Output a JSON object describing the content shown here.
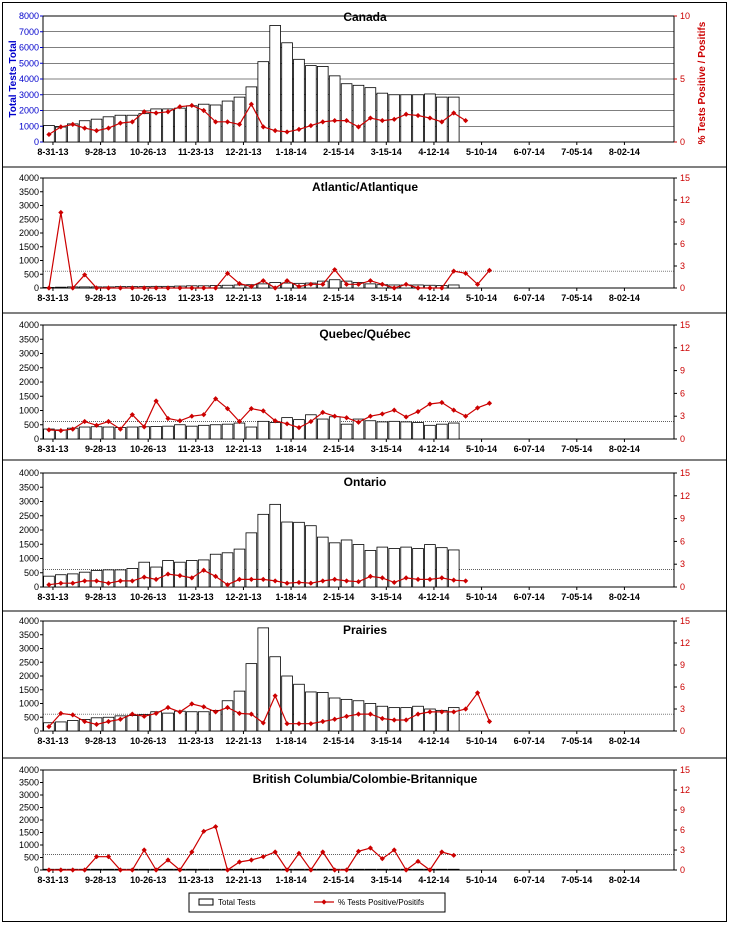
{
  "figure": {
    "legend": {
      "bars_label": "Total Tests",
      "line_label": "% Tests Positive/Positifs"
    },
    "colors": {
      "bar_fill": "#ffffff",
      "bar_stroke": "#000000",
      "line": "#cc0000",
      "first_panel_left_axis": "#0000cc",
      "first_panel_right_axis": "#cc0000",
      "grid": "#000000"
    }
  },
  "chart_data": [
    {
      "type": "bar",
      "panel": "Canada",
      "title": "Canada",
      "ylabel_left": "Total Tests Total",
      "ylabel_right": "% Tests Positive / Positifs",
      "x_tick_labels": [
        "8-31-13",
        "9-28-13",
        "10-26-13",
        "11-23-13",
        "12-21-13",
        "1-18-14",
        "2-15-14",
        "3-15-14",
        "4-12-14",
        "5-10-14",
        "6-07-14",
        "7-05-14",
        "8-02-14"
      ],
      "y_left_ticks": [
        0,
        1000,
        2000,
        3000,
        4000,
        5000,
        6000,
        7000,
        8000
      ],
      "y_right_ticks": [
        0,
        5,
        10
      ],
      "ylim_left": [
        0,
        8000
      ],
      "ylim_right": [
        0,
        10
      ],
      "n_weeks": 53,
      "series": [
        {
          "name": "Total Tests",
          "values": [
            1050,
            950,
            1150,
            1350,
            1450,
            1600,
            1700,
            1700,
            1800,
            2100,
            2100,
            2150,
            2300,
            2400,
            2350,
            2600,
            2850,
            3500,
            5100,
            7400,
            6300,
            5250,
            4850,
            4800,
            4200,
            3700,
            3600,
            3450,
            3100,
            3000,
            3000,
            3000,
            3050,
            2850,
            2850
          ]
        },
        {
          "name": "% Tests Positive/Positifs",
          "values": [
            0.6,
            1.2,
            1.4,
            1.1,
            0.9,
            1.1,
            1.5,
            1.6,
            2.4,
            2.3,
            2.4,
            2.8,
            2.9,
            2.5,
            1.6,
            1.6,
            1.4,
            3.0,
            1.2,
            0.9,
            0.8,
            1.0,
            1.3,
            1.6,
            1.7,
            1.7,
            1.2,
            1.9,
            1.7,
            1.8,
            2.2,
            2.1,
            1.9,
            1.6,
            2.3,
            1.7
          ]
        }
      ]
    },
    {
      "type": "bar",
      "panel": "Atlantic",
      "title": "Atlantic/Atlantique",
      "x_tick_labels": [
        "8-31-13",
        "9-28-13",
        "10-26-13",
        "11-23-13",
        "12-21-13",
        "1-18-14",
        "2-15-14",
        "3-15-14",
        "4-12-14",
        "5-10-14",
        "6-07-14",
        "7-05-14",
        "8-02-14"
      ],
      "y_left_ticks": [
        0,
        500,
        1000,
        1500,
        2000,
        2500,
        3000,
        3500,
        4000
      ],
      "y_right_ticks": [
        0,
        3,
        6,
        9,
        12,
        15
      ],
      "ylim_left": [
        0,
        4000
      ],
      "ylim_right": [
        0,
        15
      ],
      "n_weeks": 53,
      "series": [
        {
          "name": "Total Tests",
          "values": [
            20,
            30,
            40,
            40,
            40,
            40,
            50,
            50,
            50,
            60,
            60,
            70,
            80,
            80,
            90,
            100,
            110,
            120,
            150,
            200,
            180,
            170,
            180,
            250,
            300,
            250,
            200,
            150,
            120,
            110,
            110,
            110,
            100,
            90,
            110
          ]
        },
        {
          "name": "% Tests Positive/Positifs",
          "values": [
            0,
            10.3,
            0,
            1.8,
            0,
            0,
            0,
            0,
            0,
            0,
            0,
            0,
            0,
            0,
            0,
            2.0,
            0.6,
            0.2,
            1.0,
            0,
            1.0,
            0.2,
            0.5,
            0.5,
            2.5,
            0.5,
            0.5,
            1.0,
            0.5,
            0,
            0.5,
            0,
            0,
            0,
            2.3,
            2.0,
            0.5,
            2.4
          ]
        }
      ]
    },
    {
      "type": "bar",
      "panel": "Quebec",
      "title": "Quebec/Québec",
      "x_tick_labels": [
        "8-31-13",
        "9-28-13",
        "10-26-13",
        "11-23-13",
        "12-21-13",
        "1-18-14",
        "2-15-14",
        "3-15-14",
        "4-12-14",
        "5-10-14",
        "6-07-14",
        "7-05-14",
        "8-02-14"
      ],
      "y_left_ticks": [
        0,
        500,
        1000,
        1500,
        2000,
        2500,
        3000,
        3500,
        4000
      ],
      "y_right_ticks": [
        0,
        3,
        6,
        9,
        12,
        15
      ],
      "ylim_left": [
        0,
        4000
      ],
      "ylim_right": [
        0,
        15
      ],
      "n_weeks": 53,
      "series": [
        {
          "name": "Total Tests",
          "values": [
            350,
            320,
            380,
            420,
            430,
            420,
            400,
            420,
            430,
            440,
            450,
            500,
            450,
            480,
            500,
            520,
            560,
            420,
            620,
            580,
            750,
            680,
            850,
            700,
            780,
            520,
            700,
            640,
            600,
            620,
            600,
            580,
            480,
            520,
            560
          ]
        },
        {
          "name": "% Tests Positive/Positifs",
          "values": [
            1.2,
            1.1,
            1.3,
            2.3,
            1.8,
            2.3,
            1.3,
            3.2,
            1.6,
            5.0,
            2.7,
            2.4,
            3.0,
            3.2,
            5.3,
            4.0,
            2.3,
            4.0,
            3.7,
            2.4,
            2.0,
            1.5,
            2.3,
            3.5,
            3.0,
            2.8,
            2.2,
            3.0,
            3.3,
            3.8,
            2.9,
            3.6,
            4.6,
            4.8,
            3.8,
            3.0,
            4.1,
            4.7
          ]
        }
      ]
    },
    {
      "type": "bar",
      "panel": "Ontario",
      "title": "Ontario",
      "x_tick_labels": [
        "8-31-13",
        "9-28-13",
        "10-26-13",
        "11-23-13",
        "12-21-13",
        "1-18-14",
        "2-15-14",
        "3-15-14",
        "4-12-14",
        "5-10-14",
        "6-07-14",
        "7-05-14",
        "8-02-14"
      ],
      "y_left_ticks": [
        0,
        500,
        1000,
        1500,
        2000,
        2500,
        3000,
        3500,
        4000
      ],
      "y_right_ticks": [
        0,
        3,
        6,
        9,
        12,
        15
      ],
      "ylim_left": [
        0,
        4000
      ],
      "ylim_right": [
        0,
        15
      ],
      "n_weeks": 53,
      "series": [
        {
          "name": "Total Tests",
          "values": [
            380,
            430,
            460,
            520,
            580,
            600,
            600,
            650,
            870,
            700,
            930,
            870,
            930,
            950,
            1150,
            1200,
            1330,
            1900,
            2550,
            2900,
            2280,
            2270,
            2150,
            1750,
            1550,
            1650,
            1490,
            1280,
            1400,
            1350,
            1400,
            1350,
            1490,
            1380,
            1300
          ]
        },
        {
          "name": "% Tests Positive/Positifs",
          "values": [
            0.3,
            0.5,
            0.5,
            0.8,
            0.8,
            0.5,
            0.8,
            0.8,
            1.3,
            1.0,
            1.7,
            1.5,
            1.2,
            2.2,
            1.4,
            0.3,
            1.0,
            1.0,
            1.0,
            0.8,
            0.5,
            0.6,
            0.5,
            0.8,
            1.0,
            0.8,
            0.7,
            1.4,
            1.2,
            0.6,
            1.2,
            1.0,
            1.0,
            1.2,
            0.9,
            0.8
          ]
        }
      ]
    },
    {
      "type": "bar",
      "panel": "Prairies",
      "title": "Prairies",
      "x_tick_labels": [
        "8-31-13",
        "9-28-13",
        "10-26-13",
        "11-23-13",
        "12-21-13",
        "1-18-14",
        "2-15-14",
        "3-15-14",
        "4-12-14",
        "5-10-14",
        "6-07-14",
        "7-05-14",
        "8-02-14"
      ],
      "y_left_ticks": [
        0,
        500,
        1000,
        1500,
        2000,
        2500,
        3000,
        3500,
        4000
      ],
      "y_right_ticks": [
        0,
        3,
        6,
        9,
        12,
        15
      ],
      "ylim_left": [
        0,
        4000
      ],
      "ylim_right": [
        0,
        15
      ],
      "n_weeks": 53,
      "series": [
        {
          "name": "Total Tests",
          "values": [
            300,
            330,
            380,
            420,
            480,
            500,
            550,
            560,
            600,
            700,
            650,
            720,
            700,
            700,
            750,
            1100,
            1450,
            2450,
            3750,
            2700,
            2000,
            1700,
            1420,
            1400,
            1200,
            1150,
            1100,
            1000,
            900,
            850,
            850,
            900,
            800,
            750,
            850
          ]
        },
        {
          "name": "% Tests Positive/Positifs",
          "values": [
            0.6,
            2.4,
            2.2,
            1.3,
            0.9,
            1.3,
            1.6,
            2.3,
            2.0,
            2.4,
            3.2,
            2.6,
            3.7,
            3.3,
            2.6,
            3.2,
            2.4,
            2.3,
            1.1,
            4.8,
            1.0,
            1.0,
            1.0,
            1.3,
            1.6,
            2.0,
            2.3,
            2.3,
            1.7,
            1.5,
            1.5,
            2.3,
            2.6,
            2.6,
            2.6,
            3.0,
            5.2,
            1.3
          ]
        }
      ]
    },
    {
      "type": "bar",
      "panel": "British Columbia",
      "title": "British Columbia/Colombie-Britannique",
      "x_tick_labels": [
        "8-31-13",
        "9-28-13",
        "10-26-13",
        "11-23-13",
        "12-21-13",
        "1-18-14",
        "2-15-14",
        "3-15-14",
        "4-12-14",
        "5-10-14",
        "6-07-14",
        "7-05-14",
        "8-02-14"
      ],
      "y_left_ticks": [
        0,
        500,
        1000,
        1500,
        2000,
        2500,
        3000,
        3500,
        4000
      ],
      "y_right_ticks": [
        0,
        3,
        6,
        9,
        12,
        15
      ],
      "ylim_left": [
        0,
        4000
      ],
      "ylim_right": [
        0,
        15
      ],
      "n_weeks": 53,
      "series": [
        {
          "name": "Total Tests",
          "values": [
            30,
            30,
            30,
            30,
            30,
            30,
            30,
            30,
            30,
            30,
            30,
            30,
            30,
            30,
            30,
            30,
            30,
            30,
            30,
            30,
            30,
            30,
            30,
            30,
            30,
            30,
            30,
            30,
            30,
            30,
            30,
            30,
            30,
            30,
            30
          ]
        },
        {
          "name": "% Tests Positive/Positifs",
          "values": [
            0,
            0,
            0,
            0,
            2.0,
            2.0,
            0,
            0,
            3.0,
            0,
            1.5,
            0,
            2.7,
            5.8,
            6.5,
            0,
            1.2,
            1.5,
            2.0,
            2.7,
            0,
            2.5,
            0,
            2.7,
            0,
            0,
            2.8,
            3.3,
            1.7,
            3.0,
            0,
            1.3,
            0,
            2.7,
            2.2
          ]
        }
      ]
    }
  ]
}
